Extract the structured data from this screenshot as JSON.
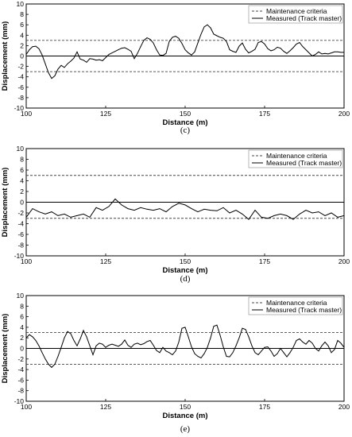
{
  "chart_data": [
    {
      "type": "line",
      "sublabel": "(c)",
      "xlabel": "Distance (m)",
      "ylabel": "Displacement (mm)",
      "xlim": [
        100,
        200
      ],
      "ylim": [
        -10,
        10
      ],
      "xticks": [
        100,
        125,
        150,
        175,
        200
      ],
      "yticks": [
        -10,
        -8,
        -6,
        -4,
        -2,
        0,
        2,
        4,
        6,
        8,
        10
      ],
      "legend_position": "top-right",
      "grid": false,
      "series": [
        {
          "name": "Maintenance criteria",
          "style": "dashed",
          "values": [
            3,
            -3
          ]
        },
        {
          "name": "Measured (Track master)",
          "style": "solid",
          "x": [
            100,
            101,
            102,
            103,
            104,
            105,
            106,
            107,
            108,
            109,
            110,
            111,
            112,
            113,
            114,
            115,
            116,
            117,
            118,
            119,
            120,
            121,
            122,
            123,
            124,
            125,
            126,
            127,
            128,
            129,
            130,
            131,
            132,
            133,
            134,
            135,
            136,
            137,
            138,
            139,
            140,
            141,
            142,
            143,
            144,
            145,
            146,
            147,
            148,
            149,
            150,
            151,
            152,
            153,
            154,
            155,
            156,
            157,
            158,
            159,
            160,
            161,
            162,
            163,
            164,
            165,
            166,
            167,
            168,
            169,
            170,
            171,
            172,
            173,
            174,
            175,
            176,
            177,
            178,
            179,
            180,
            181,
            182,
            183,
            184,
            185,
            186,
            187,
            188,
            189,
            190,
            191,
            192,
            193,
            194,
            195,
            196,
            197,
            198,
            199,
            200
          ],
          "y": [
            0.3,
            1.2,
            1.8,
            1.9,
            1.4,
            0.2,
            -1.5,
            -3.2,
            -4.3,
            -3.8,
            -2.5,
            -1.8,
            -2.2,
            -1.5,
            -1.0,
            -0.4,
            0.8,
            -0.6,
            -0.8,
            -1.2,
            -0.5,
            -0.6,
            -0.8,
            -0.7,
            -0.9,
            -0.3,
            0.3,
            0.6,
            0.9,
            1.2,
            1.5,
            1.6,
            1.3,
            0.9,
            -0.5,
            0.5,
            1.8,
            3.0,
            3.5,
            3.2,
            2.5,
            1.2,
            0.2,
            0.1,
            0.5,
            2.8,
            3.6,
            3.8,
            3.4,
            2.4,
            1.2,
            0.6,
            0.2,
            0.8,
            2.5,
            4.2,
            5.6,
            6.0,
            5.4,
            4.2,
            3.9,
            3.6,
            3.4,
            2.8,
            1.2,
            0.9,
            0.7,
            1.9,
            2.5,
            1.3,
            0.6,
            0.9,
            1.3,
            2.6,
            2.8,
            2.3,
            1.4,
            1.0,
            1.2,
            1.7,
            1.5,
            0.9,
            0.5,
            1.0,
            1.6,
            2.3,
            2.6,
            1.8,
            1.2,
            0.6,
            0.0,
            0.3,
            0.8,
            0.4,
            0.5,
            0.4,
            0.6,
            0.8,
            0.8,
            0.7,
            0.7
          ]
        }
      ]
    },
    {
      "type": "line",
      "sublabel": "(d)",
      "xlabel": "Distance (m)",
      "ylabel": "Displacement (mm)",
      "xlim": [
        100,
        200
      ],
      "ylim": [
        -10,
        10
      ],
      "xticks": [
        100,
        125,
        150,
        175,
        200
      ],
      "yticks": [
        -10,
        -8,
        -6,
        -4,
        -2,
        0,
        2,
        4,
        6,
        8,
        10
      ],
      "legend_position": "top-right",
      "grid": false,
      "series": [
        {
          "name": "Maintenance criteria",
          "style": "dashed",
          "values": [
            5,
            -3
          ]
        },
        {
          "name": "Measured (Track master)",
          "style": "solid",
          "x": [
            100,
            102,
            104,
            106,
            108,
            110,
            112,
            114,
            116,
            118,
            120,
            122,
            124,
            126,
            128,
            130,
            132,
            134,
            136,
            138,
            140,
            142,
            144,
            146,
            148,
            150,
            152,
            154,
            156,
            158,
            160,
            162,
            164,
            166,
            168,
            170,
            172,
            174,
            176,
            178,
            180,
            182,
            184,
            186,
            188,
            190,
            192,
            194,
            196,
            198,
            200
          ],
          "y": [
            -2.8,
            -1.2,
            -1.8,
            -2.2,
            -1.8,
            -2.5,
            -2.2,
            -2.8,
            -2.5,
            -2.2,
            -2.8,
            -1.0,
            -1.5,
            -0.8,
            0.6,
            -0.5,
            -1.2,
            -1.5,
            -1.0,
            -1.3,
            -1.5,
            -1.2,
            -1.8,
            -0.8,
            -0.2,
            -0.5,
            -1.2,
            -1.8,
            -1.3,
            -1.5,
            -1.6,
            -1.0,
            -2.0,
            -1.5,
            -2.2,
            -3.2,
            -1.5,
            -2.8,
            -3.0,
            -2.5,
            -2.2,
            -2.5,
            -3.2,
            -2.2,
            -1.5,
            -2.0,
            -1.8,
            -2.5,
            -2.0,
            -2.8,
            -2.5
          ]
        }
      ]
    },
    {
      "type": "line",
      "sublabel": "(e)",
      "xlabel": "Distance (m)",
      "ylabel": "Displacement (mm)",
      "xlim": [
        100,
        200
      ],
      "ylim": [
        -10,
        10
      ],
      "xticks": [
        100,
        125,
        150,
        175,
        200
      ],
      "yticks": [
        -10,
        -8,
        -6,
        -4,
        -2,
        0,
        2,
        4,
        6,
        8,
        10
      ],
      "legend_position": "top-right",
      "grid": false,
      "series": [
        {
          "name": "Maintenance criteria",
          "style": "dashed",
          "values": [
            3,
            -3
          ]
        },
        {
          "name": "Measured (Track master)",
          "style": "solid",
          "x": [
            100,
            101,
            102,
            103,
            104,
            105,
            106,
            107,
            108,
            109,
            110,
            111,
            112,
            113,
            114,
            115,
            116,
            117,
            118,
            119,
            120,
            121,
            122,
            123,
            124,
            125,
            126,
            127,
            128,
            129,
            130,
            131,
            132,
            133,
            134,
            135,
            136,
            137,
            138,
            139,
            140,
            141,
            142,
            143,
            144,
            145,
            146,
            147,
            148,
            149,
            150,
            151,
            152,
            153,
            154,
            155,
            156,
            157,
            158,
            159,
            160,
            161,
            162,
            163,
            164,
            165,
            166,
            167,
            168,
            169,
            170,
            171,
            172,
            173,
            174,
            175,
            176,
            177,
            178,
            179,
            180,
            181,
            182,
            183,
            184,
            185,
            186,
            187,
            188,
            189,
            190,
            191,
            192,
            193,
            194,
            195,
            196,
            197,
            198,
            199,
            200
          ],
          "y": [
            2.0,
            2.6,
            2.2,
            1.5,
            0.5,
            -0.8,
            -2.0,
            -3.0,
            -3.6,
            -3.0,
            -1.5,
            0.2,
            2.0,
            3.2,
            2.8,
            1.5,
            0.5,
            1.8,
            3.4,
            2.2,
            0.5,
            -1.2,
            0.5,
            1.0,
            0.8,
            0.2,
            0.6,
            0.8,
            0.6,
            0.4,
            0.8,
            1.6,
            0.6,
            0.2,
            0.8,
            1.0,
            0.7,
            0.9,
            1.3,
            1.5,
            0.6,
            -0.4,
            -0.8,
            0.2,
            -0.5,
            -0.8,
            -1.2,
            -0.5,
            1.2,
            3.8,
            4.0,
            2.2,
            0.3,
            -1.0,
            -1.5,
            -1.8,
            -1.0,
            0.2,
            2.0,
            4.2,
            4.4,
            2.5,
            0.3,
            -1.5,
            -1.6,
            -0.8,
            0.5,
            2.0,
            3.8,
            3.6,
            2.2,
            0.5,
            -0.8,
            -1.2,
            -0.5,
            0.2,
            0.3,
            -0.5,
            -1.5,
            -1.0,
            0.0,
            -0.8,
            -1.6,
            -0.8,
            0.2,
            1.5,
            1.8,
            1.2,
            0.8,
            1.5,
            1.0,
            0.0,
            -0.5,
            0.5,
            1.2,
            0.5,
            -0.8,
            -0.2,
            1.5,
            1.0,
            0.2
          ]
        }
      ]
    }
  ]
}
